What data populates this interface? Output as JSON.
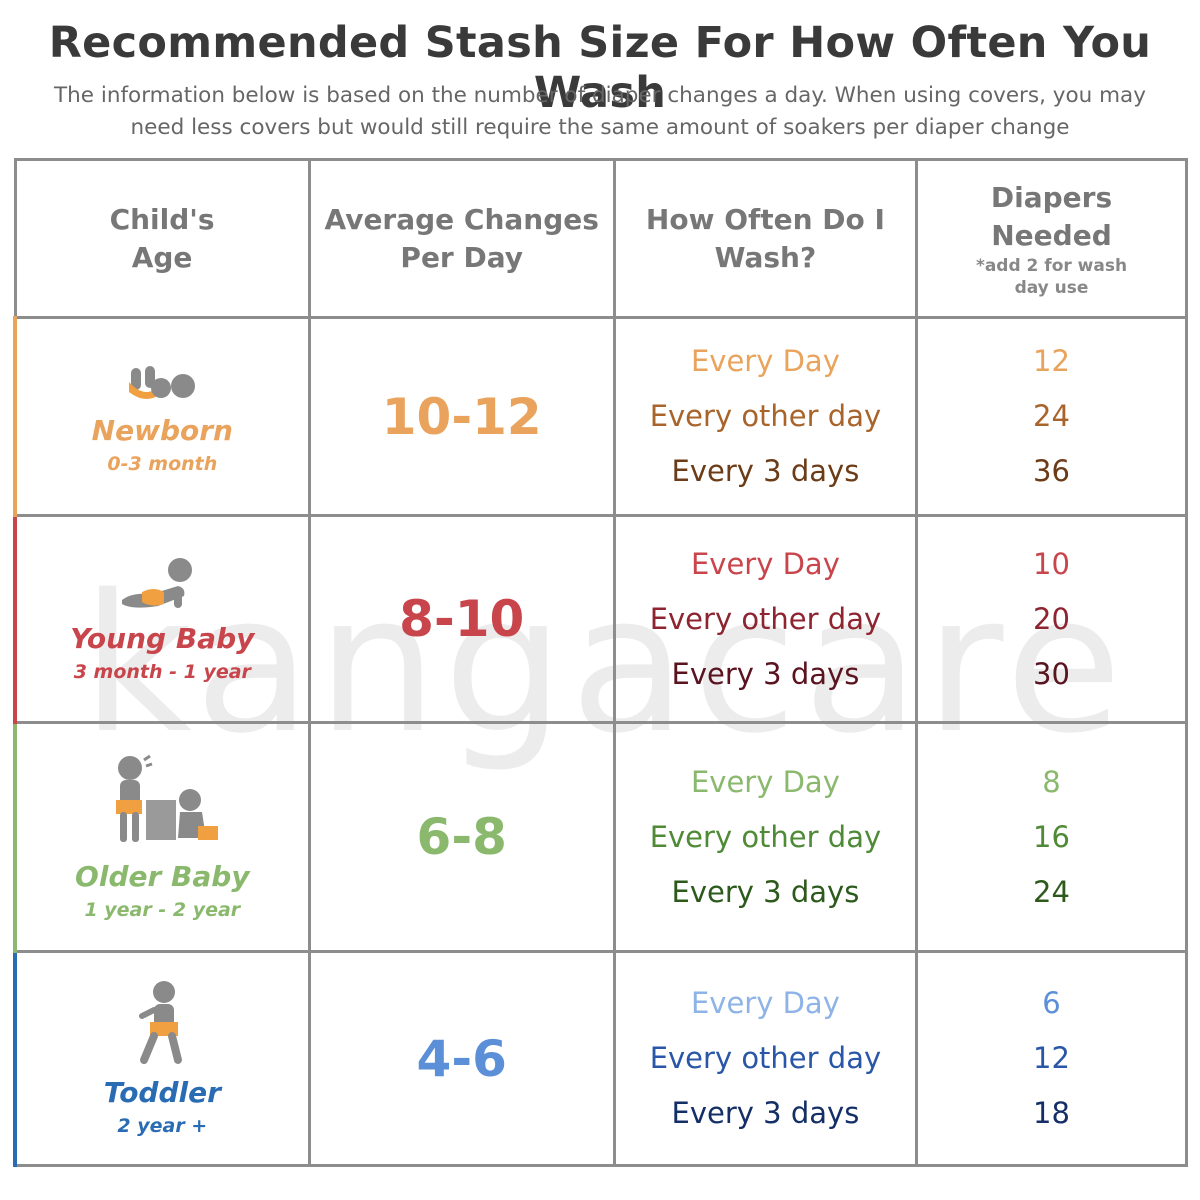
{
  "title": "Recommended Stash Size For How Often You Wash",
  "subtitle_line1": "The information below is based on the number of diaper changes a day. When using covers, you may",
  "subtitle_line2": "need less covers but would still require the same amount of soakers per diaper change",
  "watermark": "kangacare",
  "headers": {
    "age_line1": "Child's",
    "age_line2": "Age",
    "avg_line1": "Average Changes",
    "avg_line2": "Per Day",
    "wash_line1": "How Often Do I",
    "wash_line2": "Wash?",
    "need_line1": "Diapers",
    "need_line2": "Needed",
    "need_note_line1": "*add 2 for wash",
    "need_note_line2": "day use"
  },
  "rows": [
    {
      "name": "Newborn",
      "range": "0-3 month",
      "avg": "10-12",
      "wash": [
        "Every Day",
        "Every other day",
        "Every 3 days"
      ],
      "need": [
        "12",
        "24",
        "36"
      ],
      "icon": "newborn-icon"
    },
    {
      "name": "Young Baby",
      "range": "3 month - 1 year",
      "avg": "8-10",
      "wash": [
        "Every Day",
        "Every other day",
        "Every 3 days"
      ],
      "need": [
        "10",
        "20",
        "30"
      ],
      "icon": "crawling-baby-icon"
    },
    {
      "name": "Older Baby",
      "range": "1 year - 2 year",
      "avg": "6-8",
      "wash": [
        "Every Day",
        "Every other day",
        "Every 3 days"
      ],
      "need": [
        "8",
        "16",
        "24"
      ],
      "icon": "older-baby-icon"
    },
    {
      "name": "Toddler",
      "range": "2 year +",
      "avg": "4-6",
      "wash": [
        "Every Day",
        "Every other day",
        "Every 3 days"
      ],
      "need": [
        "6",
        "12",
        "18"
      ],
      "icon": "toddler-icon"
    }
  ],
  "colors": {
    "newborn": "#e9a35c",
    "newborn_dark": "#a8642a",
    "newborn_darker": "#6b3c17",
    "young": "#c9454c",
    "young_dark": "#8d2430",
    "young_darker": "#5a1420",
    "older": "#8ab96d",
    "older_dark": "#4f8a36",
    "older_darker": "#2d5a1c",
    "toddler": "#5b8fd8",
    "toddler_dark": "#2a56a8",
    "toddler_darker": "#142e66",
    "diaper": "#f0a040",
    "figure": "#8a8a8a"
  }
}
